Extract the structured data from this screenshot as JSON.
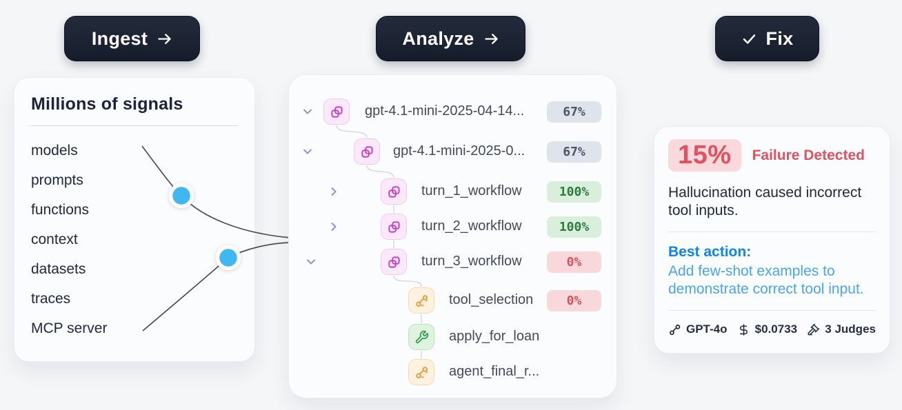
{
  "pipeline_buttons": [
    {
      "id": "ingest",
      "label": "Ingest",
      "icon": "arrow-right-icon"
    },
    {
      "id": "analyze",
      "label": "Analyze",
      "icon": "arrow-right-icon"
    },
    {
      "id": "fix",
      "label": "Fix",
      "icon": "check-icon"
    }
  ],
  "signals_card": {
    "title": "Millions of signals",
    "items": [
      "models",
      "prompts",
      "functions",
      "context",
      "datasets",
      "traces",
      "MCP server"
    ]
  },
  "trace_tree": {
    "rows": [
      {
        "label": "gpt-4.1-mini-2025-04-14...",
        "badge": "67%",
        "badge_type": "neutral",
        "icon": "workflow",
        "chevron": "down"
      },
      {
        "label": "gpt-4.1-mini-2025-0...",
        "badge": "67%",
        "badge_type": "neutral",
        "icon": "workflow",
        "chevron": "down"
      },
      {
        "label": "turn_1_workflow",
        "badge": "100%",
        "badge_type": "success",
        "icon": "workflow",
        "chevron": "right"
      },
      {
        "label": "turn_2_workflow",
        "badge": "100%",
        "badge_type": "success",
        "icon": "workflow",
        "chevron": "right"
      },
      {
        "label": "turn_3_workflow",
        "badge": "0%",
        "badge_type": "error",
        "icon": "workflow",
        "chevron": "down"
      },
      {
        "label": "tool_selection",
        "badge": "0%",
        "badge_type": "error",
        "icon": "nodes",
        "chevron": null
      },
      {
        "label": "apply_for_loan",
        "badge": null,
        "badge_type": null,
        "icon": "wrench",
        "chevron": null
      },
      {
        "label": "agent_final_r...",
        "badge": null,
        "badge_type": null,
        "icon": "nodes",
        "chevron": null
      }
    ]
  },
  "insight_card": {
    "failure_rate": "15%",
    "failure_label": "Failure Detected",
    "description": "Hallucination caused incorrect tool inputs.",
    "best_action_label": "Best action:",
    "best_action_text": "Add few-shot examples to demonstrate correct tool input.",
    "footer": [
      {
        "icon": "model-nodes-icon",
        "text": "GPT-4o"
      },
      {
        "icon": "dollar-icon",
        "text": "$0.0733"
      },
      {
        "icon": "gavel-icon",
        "text": "3 Judges"
      }
    ]
  },
  "colors": {
    "accent-blue-dot": "#3fb8f1",
    "accent-red": "#e0525f",
    "accent-blue-bold": "#0b85f0",
    "accent-blue-light": "#47a5f4",
    "status-success": "#2b7b40",
    "status-error": "#da4f5c",
    "icon-pink": "#c640c0",
    "icon-orange": "#f09c3c",
    "icon-green": "#2fa04a",
    "button-bg": "#1d2433"
  }
}
